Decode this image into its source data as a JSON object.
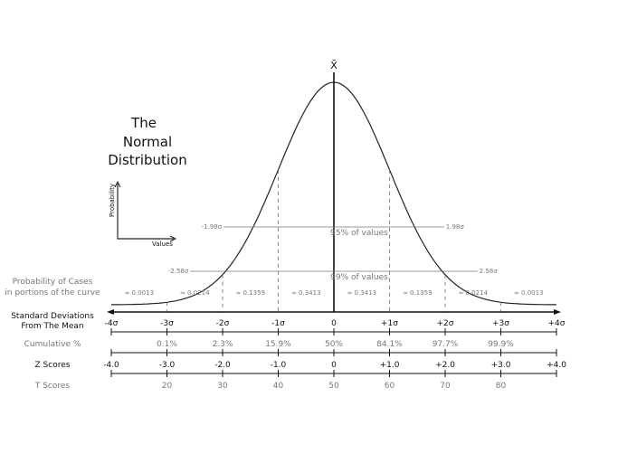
{
  "title": [
    "The",
    "Normal",
    "Distribution"
  ],
  "mean_symbol": "X̄",
  "mini_axes": {
    "y_label": "Probability",
    "x_label": "Values"
  },
  "intervals": [
    {
      "label_left": "-1.98σ",
      "label_right": "1.98σ",
      "text": "95% of values",
      "sigma": 1.98
    },
    {
      "label_left": "-2.58σ",
      "label_right": "2.58σ",
      "text": "99% of values",
      "sigma": 2.58
    }
  ],
  "rows": {
    "probability": {
      "label": [
        "Probability of Cases",
        "in portions of the curve"
      ],
      "values": [
        "≈ 0.0013",
        "≈ 0.0214",
        "≈ 0.1359",
        "≈ 0.3413",
        "≈ 0.3413",
        "≈ 0.1359",
        "≈ 0.0214",
        "≈ 0.0013"
      ]
    },
    "std_dev": {
      "label": [
        "Standard Deviations",
        "From The Mean"
      ],
      "values": [
        "-4σ",
        "-3σ",
        "-2σ",
        "-1σ",
        "0",
        "+1σ",
        "+2σ",
        "+3σ",
        "+4σ"
      ]
    },
    "cumulative": {
      "label": "Cumulative %",
      "values": [
        "",
        "0.1%",
        "2.3%",
        "15.9%",
        "50%",
        "84.1%",
        "97.7%",
        "99.9%",
        ""
      ]
    },
    "z_scores": {
      "label": "Z Scores",
      "values": [
        "-4.0",
        "-3.0",
        "-2.0",
        "-1.0",
        "0",
        "+1.0",
        "+2.0",
        "+3.0",
        "+4.0"
      ]
    },
    "t_scores": {
      "label": "T Scores",
      "values": [
        "",
        "20",
        "30",
        "40",
        "50",
        "60",
        "70",
        "80",
        ""
      ]
    }
  }
}
